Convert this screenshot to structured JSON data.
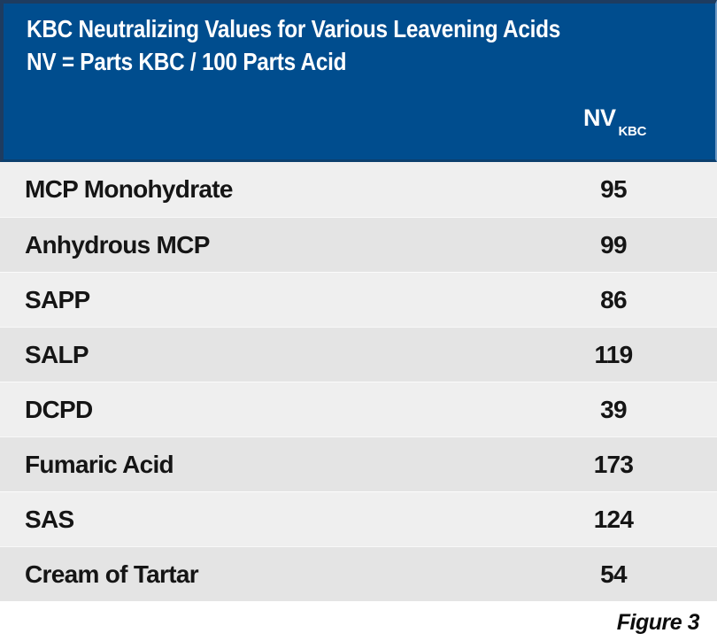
{
  "chart_data": {
    "type": "table",
    "title": "KBC Neutralizing Values for Various Leavening Acids",
    "subtitle": "NV = Parts KBC / 100 Parts Acid",
    "column_header": {
      "base": "NV",
      "subscript": "KBC"
    },
    "categories": [
      "MCP Monohydrate",
      "Anhydrous MCP",
      "SAPP",
      "SALP",
      "DCPD",
      "Fumaric Acid",
      "SAS",
      "Cream of Tartar"
    ],
    "values": [
      95,
      99,
      86,
      119,
      39,
      173,
      124,
      54
    ],
    "caption": "Figure 3"
  },
  "colors": {
    "header_blue": "#004d8e",
    "header_border_dark": "#1e3c60",
    "header_edge_light": "#6d9ac6",
    "row_light": "#efefef",
    "row_dark": "#e4e4e4",
    "text_dark": "#151515",
    "header_text": "#ffffff"
  }
}
